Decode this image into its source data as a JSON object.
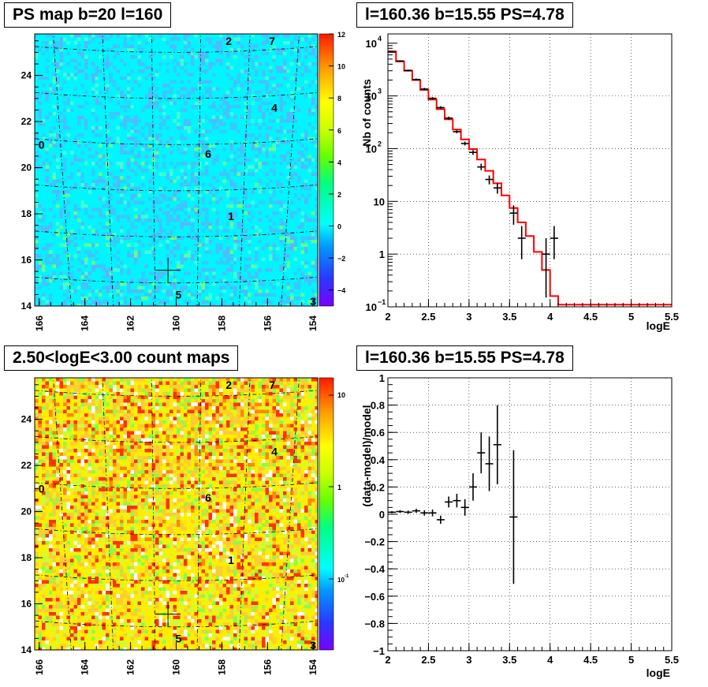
{
  "panels": {
    "ps_map_title": "PS map b=20 l=160",
    "count_map_title": "2.50<logE<3.00 count maps",
    "spectrum_title": "l=160.36 b=15.55 PS=4.78",
    "residual_title": "l=160.36 b=15.55 PS=4.78"
  },
  "maps": {
    "x_ticks": [
      "166",
      "164",
      "162",
      "160",
      "158",
      "156",
      "154"
    ],
    "y_ticks": [
      "14",
      "16",
      "18",
      "20",
      "22",
      "24"
    ],
    "source_labels": [
      {
        "text": "0",
        "l": 165.9,
        "b": 21.0
      },
      {
        "text": "1",
        "l": 157.6,
        "b": 17.9
      },
      {
        "text": "2",
        "l": 157.7,
        "b": 25.5
      },
      {
        "text": "3",
        "l": 154.0,
        "b": 14.2
      },
      {
        "text": "4",
        "l": 155.7,
        "b": 22.6
      },
      {
        "text": "5",
        "l": 159.9,
        "b": 14.5
      },
      {
        "text": "6",
        "l": 158.6,
        "b": 20.6
      },
      {
        "text": "7",
        "l": 155.8,
        "b": 25.5
      }
    ],
    "marker": {
      "l": 160.36,
      "b": 15.55
    },
    "ps_colorbar": {
      "min": -5,
      "max": 12,
      "tick_labels": [
        "12",
        "10",
        "8",
        "6",
        "4",
        "2",
        "0",
        "−2",
        "−4"
      ]
    },
    "count_colorbar": {
      "scale": "log",
      "tick_labels": [
        "10",
        "1",
        "10",
        "-1"
      ]
    }
  },
  "colors": {
    "model_line": "#ff0000",
    "data_points": "#000000",
    "ps_background": "#00ffff",
    "count_background": "#ffff00"
  },
  "chart_data": [
    {
      "type": "line",
      "title": "l=160.36 b=15.55 PS=4.78",
      "xlabel": "logE",
      "ylabel": "Nb of counts",
      "xlim": [
        2,
        5.5
      ],
      "ylim": [
        0.1,
        15000
      ],
      "yscale": "log",
      "grid": true,
      "x_tick_labels": [
        "2",
        "2.5",
        "3",
        "3.5",
        "4",
        "4.5",
        "5",
        "5.5"
      ],
      "y_tick_labels": [
        {
          "base": "10",
          "exp": "4",
          "value": 10000
        },
        {
          "base": "10",
          "exp": "3",
          "value": 1000
        },
        {
          "base": "10",
          "exp": "2",
          "value": 100
        },
        {
          "base": "10",
          "exp": "",
          "value": 10
        },
        {
          "base": "1",
          "exp": "",
          "value": 1
        },
        {
          "base": "10",
          "exp": "−1",
          "value": 0.1
        }
      ],
      "model_edges": [
        2.0,
        2.1,
        2.2,
        2.3,
        2.4,
        2.5,
        2.6,
        2.7,
        2.8,
        2.9,
        3.0,
        3.1,
        3.2,
        3.3,
        3.4,
        3.5,
        3.6,
        3.7,
        3.8,
        3.9,
        4.0,
        4.1,
        5.5
      ],
      "model_values": [
        7000,
        4500,
        3000,
        2000,
        1300,
        850,
        560,
        360,
        230,
        150,
        98,
        62,
        38,
        22,
        13,
        7.5,
        4.0,
        2.2,
        1.1,
        0.5,
        0.16,
        0.11
      ],
      "data_points": [
        {
          "x": 2.05,
          "y": 6800,
          "lo": 6600,
          "hi": 7000
        },
        {
          "x": 2.15,
          "y": 4600,
          "lo": 4450,
          "hi": 4750
        },
        {
          "x": 2.25,
          "y": 3050,
          "lo": 2930,
          "hi": 3170
        },
        {
          "x": 2.35,
          "y": 2050,
          "lo": 1960,
          "hi": 2140
        },
        {
          "x": 2.45,
          "y": 1350,
          "lo": 1280,
          "hi": 1420
        },
        {
          "x": 2.55,
          "y": 900,
          "lo": 850,
          "hi": 950
        },
        {
          "x": 2.65,
          "y": 600,
          "lo": 560,
          "hi": 640
        },
        {
          "x": 2.75,
          "y": 380,
          "lo": 355,
          "hi": 405
        },
        {
          "x": 2.85,
          "y": 210,
          "lo": 195,
          "hi": 225
        },
        {
          "x": 2.95,
          "y": 125,
          "lo": 115,
          "hi": 136
        },
        {
          "x": 3.05,
          "y": 85,
          "lo": 76,
          "hi": 94
        },
        {
          "x": 3.15,
          "y": 45,
          "lo": 39,
          "hi": 52
        },
        {
          "x": 3.25,
          "y": 26,
          "lo": 21,
          "hi": 31
        },
        {
          "x": 3.35,
          "y": 18,
          "lo": 14,
          "hi": 22
        },
        {
          "x": 3.55,
          "y": 6,
          "lo": 3.6,
          "hi": 8.4
        },
        {
          "x": 3.65,
          "y": 2,
          "lo": 0.8,
          "hi": 3.4
        },
        {
          "x": 3.95,
          "y": 1,
          "lo": 0.15,
          "hi": 2.0
        },
        {
          "x": 4.05,
          "y": 2,
          "lo": 0.8,
          "hi": 3.4
        }
      ]
    },
    {
      "type": "scatter",
      "title": "l=160.36 b=15.55 PS=4.78",
      "xlabel": "logE",
      "ylabel": "(data-model)/model",
      "xlim": [
        2,
        5.5
      ],
      "ylim": [
        -1,
        1
      ],
      "grid": true,
      "x_tick_labels": [
        "2",
        "2.5",
        "3",
        "3.5",
        "4",
        "4.5",
        "5",
        "5.5"
      ],
      "y_tick_labels": [
        "1",
        "0.8",
        "0.6",
        "0.4",
        "0.2",
        "0",
        "−0.2",
        "−0.4",
        "−0.6",
        "−0.8",
        "−1"
      ],
      "points": [
        {
          "x": 2.05,
          "y": 0.015,
          "err": 0.008
        },
        {
          "x": 2.15,
          "y": 0.02,
          "err": 0.01
        },
        {
          "x": 2.25,
          "y": 0.015,
          "err": 0.012
        },
        {
          "x": 2.35,
          "y": 0.025,
          "err": 0.015
        },
        {
          "x": 2.45,
          "y": 0.01,
          "err": 0.02
        },
        {
          "x": 2.55,
          "y": 0.01,
          "err": 0.025
        },
        {
          "x": 2.65,
          "y": -0.04,
          "err": 0.03
        },
        {
          "x": 2.75,
          "y": 0.09,
          "err": 0.04
        },
        {
          "x": 2.85,
          "y": 0.1,
          "err": 0.05
        },
        {
          "x": 2.95,
          "y": 0.05,
          "err": 0.06
        },
        {
          "x": 3.05,
          "y": 0.2,
          "err": 0.1
        },
        {
          "x": 3.15,
          "y": 0.45,
          "err": 0.15
        },
        {
          "x": 3.25,
          "y": 0.37,
          "err": 0.2
        },
        {
          "x": 3.35,
          "y": 0.51,
          "err": 0.29
        },
        {
          "x": 3.55,
          "y": -0.02,
          "err": 0.49
        }
      ]
    }
  ]
}
